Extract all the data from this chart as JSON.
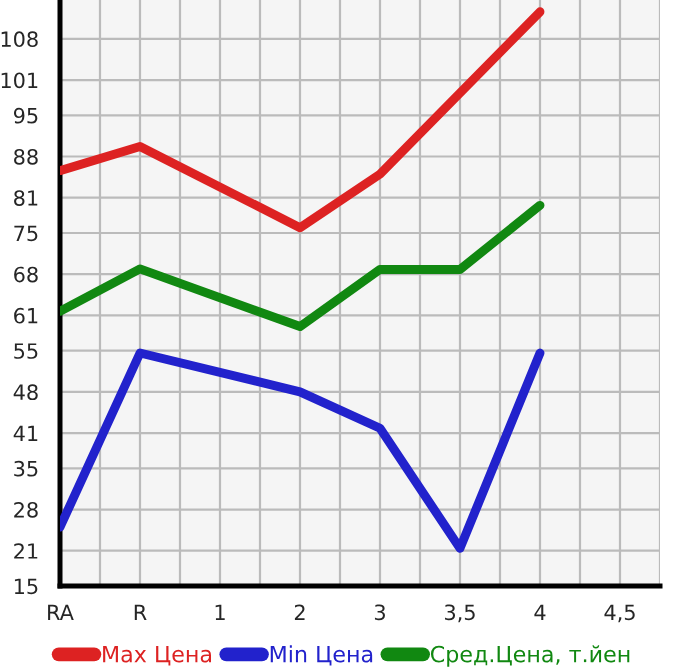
{
  "chart_data": {
    "type": "line",
    "categories": [
      "RA",
      "R",
      "1",
      "2",
      "3",
      "3,5",
      "4",
      "4,5"
    ],
    "series": [
      {
        "name": "Max Цена",
        "color": "#dd2222",
        "values": [
          85.6,
          89.7,
          null,
          75.9,
          85.0,
          null,
          112.6,
          null
        ]
      },
      {
        "name": "Min Цена",
        "color": "#2222cc",
        "values": [
          25.0,
          54.6,
          null,
          48.0,
          41.8,
          21.4,
          54.6,
          null
        ]
      },
      {
        "name": "Сред.Цена, т.йен",
        "color": "#118811",
        "values": [
          61.7,
          68.9,
          null,
          59.1,
          68.8,
          68.8,
          79.7,
          null
        ]
      }
    ],
    "ylim": [
      15,
      114.6
    ],
    "yticks": [
      15,
      21,
      28,
      35,
      41,
      48,
      55,
      61,
      68,
      75,
      81,
      88,
      95,
      101,
      108
    ],
    "grid": true,
    "legend": "bottom",
    "marker": "none",
    "line_style": "solid"
  }
}
